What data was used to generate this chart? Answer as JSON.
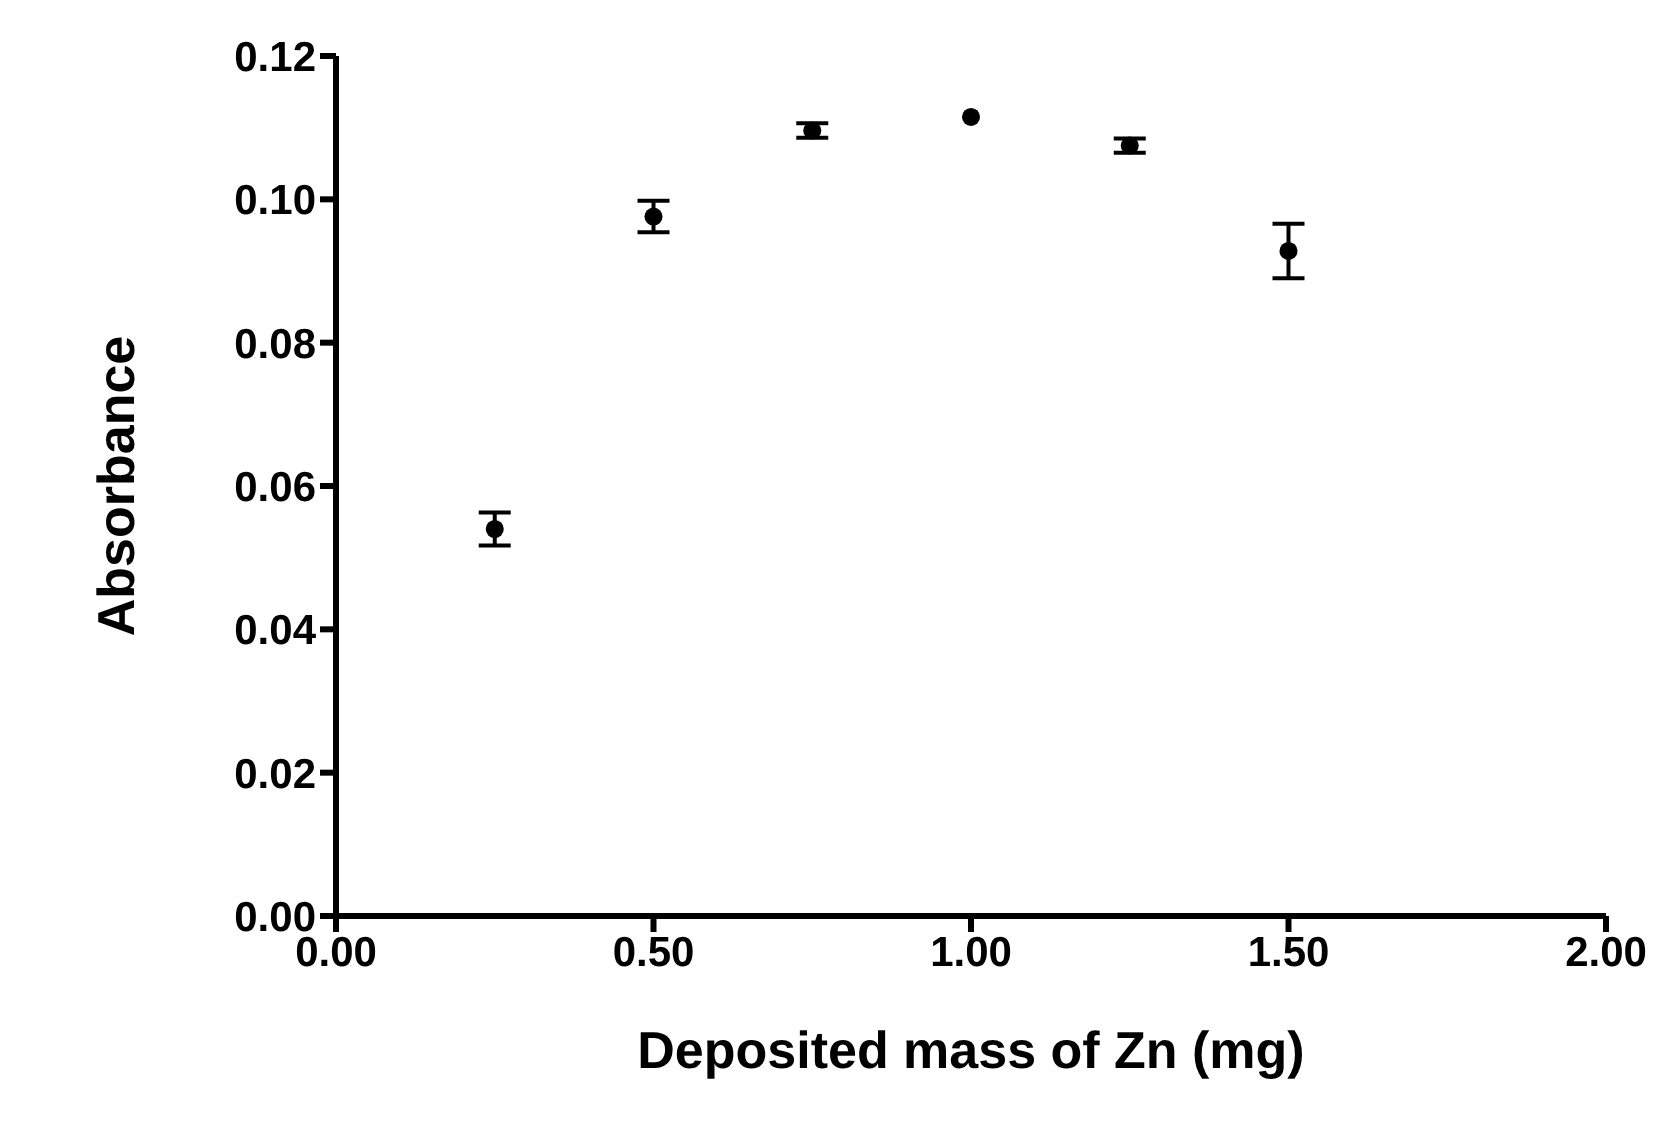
{
  "chart_data": {
    "type": "scatter",
    "xlabel": "Deposited mass of Zn (mg)",
    "ylabel": "Absorbance",
    "x": [
      0.25,
      0.5,
      0.75,
      1.0,
      1.25,
      1.5
    ],
    "series": [
      {
        "color": "#000000",
        "values": [
          0.054,
          0.0976,
          0.1096,
          0.1115,
          0.1075,
          0.0928
        ],
        "errors": [
          0.0023,
          0.0022,
          0.001,
          null,
          0.001,
          0.0038
        ]
      }
    ],
    "xlim": [
      0,
      2
    ],
    "xticks": [
      {
        "value": 0,
        "label": "0.00"
      },
      {
        "value": 0.5,
        "label": "0.50"
      },
      {
        "value": 1,
        "label": "1.00"
      },
      {
        "value": 1.5,
        "label": "1.50"
      },
      {
        "value": 2,
        "label": "2.00"
      }
    ],
    "ylim": [
      0,
      0.12
    ],
    "yticks": [
      {
        "value": 0,
        "label": "0.00"
      },
      {
        "value": 0.02,
        "label": "0.02"
      },
      {
        "value": 0.04,
        "label": "0.04"
      },
      {
        "value": 0.06,
        "label": "0.06"
      },
      {
        "value": 0.08,
        "label": "0.08"
      },
      {
        "value": 0.1,
        "label": "0.10"
      },
      {
        "value": 0.12,
        "label": "0.12"
      }
    ],
    "marker": "circle",
    "grid": false,
    "legend": false
  }
}
